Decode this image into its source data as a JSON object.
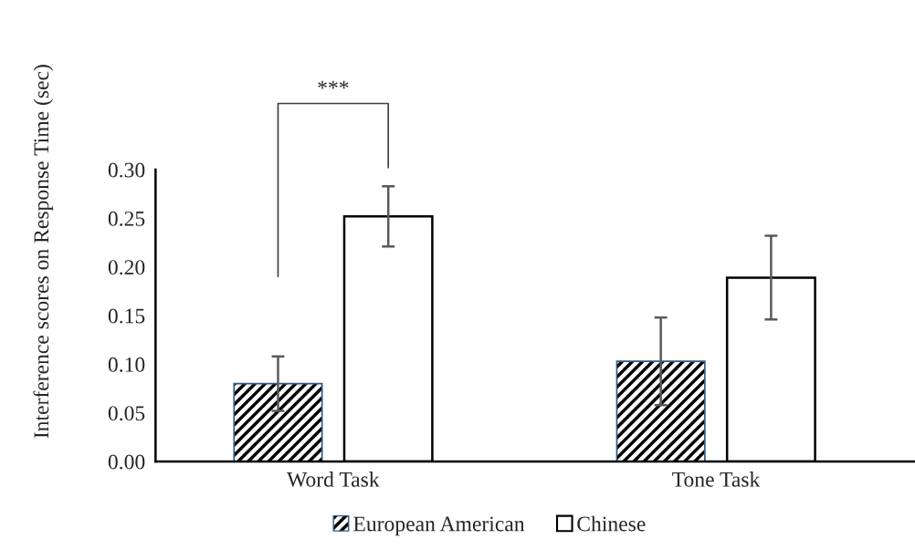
{
  "chart_data": {
    "type": "bar",
    "ylabel": "Interference scores on Response Time (sec)",
    "categories": [
      "Word Task",
      "Tone Task"
    ],
    "series": [
      {
        "name": "European American",
        "color": "#2e5a87",
        "values": [
          0.08,
          0.103
        ],
        "errors": [
          0.028,
          0.045
        ]
      },
      {
        "name": "Chinese",
        "color": "#ffffff",
        "values": [
          0.252,
          0.189
        ],
        "errors": [
          0.031,
          0.043
        ]
      }
    ],
    "ylim": [
      0,
      0.3
    ],
    "yticks": [
      {
        "value": 0,
        "label": "0.00"
      },
      {
        "value": 0.05,
        "label": "0.05"
      },
      {
        "value": 0.1,
        "label": "0.10"
      },
      {
        "value": 0.15,
        "label": "0.15"
      },
      {
        "value": 0.2,
        "label": "0.20"
      },
      {
        "value": 0.25,
        "label": "0.25"
      },
      {
        "value": 0.3,
        "label": "0.30"
      }
    ],
    "grid": false,
    "legend": "bottom",
    "annotations": [
      "***"
    ]
  }
}
